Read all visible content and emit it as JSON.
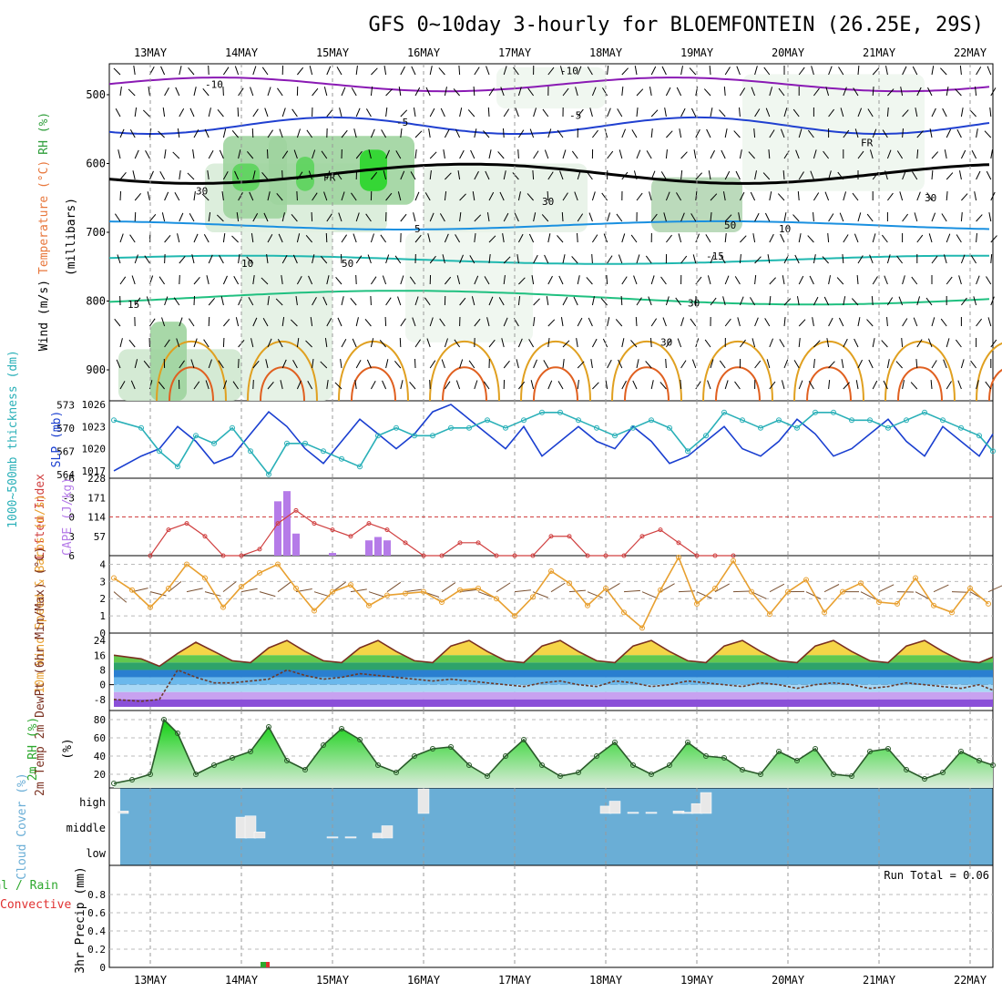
{
  "title": "GFS 0~10day 3-hourly for BLOEMFONTEIN (26.25E, 29S)",
  "dates": [
    "13MAY",
    "14MAY",
    "15MAY",
    "16MAY",
    "17MAY",
    "18MAY",
    "19MAY",
    "20MAY",
    "21MAY",
    "22MAY"
  ],
  "colors": {
    "wind_label": "#000000",
    "temp_label": "#e8773c",
    "rh_label": "#2e9e3a",
    "slp": "#1a3fd0",
    "thickness": "#2ab0b8",
    "lifted_index": "#d04040",
    "cape": "#b57be8",
    "wind10m": "#e8a030",
    "barb10m": "#7a5030",
    "temp2m": "#7a3020",
    "dewpt2m": "#6b3a2a",
    "rh2m": "#2ea82e",
    "cloud_bg": "#6aaed6",
    "cloud_bar": "#e8e8e8",
    "precip_total": "#2ea82e",
    "precip_conv": "#e03030"
  },
  "upper_panel": {
    "ylabel_parts": [
      "Wind (m/s)",
      "Temperature (°C)",
      "RH (%)",
      "(millibars)"
    ],
    "pressure_ticks": [
      "500",
      "600",
      "700",
      "800",
      "900"
    ],
    "contour_labels": [
      "-10",
      "-10",
      "-5",
      "FR",
      "FR",
      "-5",
      "5",
      "10",
      "10",
      "-15",
      "15",
      "30",
      "30",
      "30",
      "30",
      "30",
      "50",
      "50"
    ]
  },
  "slp_panel": {
    "ylabel_left": "1000~500mb thickness (dm)",
    "ylabel_right": "SLP (mb)",
    "left_ticks": [
      "573",
      "570",
      "567",
      "564"
    ],
    "right_ticks": [
      "1026",
      "1023",
      "1020",
      "1017"
    ]
  },
  "li_panel": {
    "ylabel_left": "Lifted Index",
    "ylabel_right": "CAPE (J/kg)",
    "left_ticks": [
      "-6",
      "-3",
      "0",
      "3",
      "6"
    ],
    "right_ticks": [
      "228",
      "171",
      "114",
      "57"
    ]
  },
  "wind10_panel": {
    "ylabel": "10m Wind Speed & Barbs (m/s)",
    "ticks": [
      "4",
      "3",
      "2",
      "1",
      "0"
    ]
  },
  "temp_panel": {
    "ylabel": "2m Temp 2m DewPt (6hr Min/Max) (°C)",
    "ticks": [
      "24",
      "16",
      "8",
      "0",
      "-8"
    ]
  },
  "rh_panel": {
    "ylabel": "2m RH (%)",
    "ticks": [
      "80",
      "60",
      "40",
      "20"
    ]
  },
  "cloud_panel": {
    "ylabel": "Cloud Cover (%)",
    "levels": [
      "high",
      "middle",
      "low"
    ]
  },
  "precip_panel": {
    "ylabel_left": "Total / Rain",
    "ylabel_conv": "Convective",
    "ylabel_axis": "3hr Precip (mm)",
    "ticks": [
      "0.8",
      "0.6",
      "0.4",
      "0.2",
      "0"
    ],
    "run_total": "Run Total = 0.06"
  },
  "chart_data": {
    "type": "line",
    "title": "GFS 0~10day 3-hourly for BLOEMFONTEIN (26.25E, 29S)",
    "x_categories": [
      "13MAY",
      "14MAY",
      "15MAY",
      "16MAY",
      "17MAY",
      "18MAY",
      "19MAY",
      "20MAY",
      "21MAY",
      "22MAY"
    ],
    "x_range_days": [
      12.55,
      22.25
    ],
    "series": [
      {
        "name": "SLP (mb)",
        "ylim": [
          1016,
          1026
        ],
        "x": [
          12.6,
          12.9,
          13.1,
          13.3,
          13.5,
          13.7,
          13.9,
          14.1,
          14.3,
          14.5,
          14.7,
          14.9,
          15.1,
          15.3,
          15.5,
          15.7,
          15.9,
          16.1,
          16.3,
          16.5,
          16.7,
          16.9,
          17.1,
          17.3,
          17.5,
          17.7,
          17.9,
          18.1,
          18.3,
          18.5,
          18.7,
          18.9,
          19.1,
          19.3,
          19.5,
          19.7,
          19.9,
          20.1,
          20.3,
          20.5,
          20.7,
          20.9,
          21.1,
          21.3,
          21.5,
          21.7,
          21.9,
          22.1,
          22.25
        ],
        "values": [
          1017,
          1019,
          1020,
          1023,
          1021,
          1018,
          1019,
          1022,
          1025,
          1023,
          1020,
          1018,
          1021,
          1024,
          1022,
          1020,
          1022,
          1025,
          1026,
          1024,
          1022,
          1020,
          1023,
          1019,
          1021,
          1023,
          1021,
          1020,
          1023,
          1021,
          1018,
          1019,
          1021,
          1023,
          1020,
          1019,
          1021,
          1024,
          1022,
          1019,
          1020,
          1022,
          1024,
          1021,
          1019,
          1023,
          1021,
          1019,
          1022
        ]
      },
      {
        "name": "1000~500mb thickness (dm)",
        "ylim": [
          564,
          573
        ],
        "x": [
          12.6,
          12.9,
          13.1,
          13.3,
          13.5,
          13.7,
          13.9,
          14.1,
          14.3,
          14.5,
          14.7,
          14.9,
          15.1,
          15.3,
          15.5,
          15.7,
          15.9,
          16.1,
          16.3,
          16.5,
          16.7,
          16.9,
          17.1,
          17.3,
          17.5,
          17.7,
          17.9,
          18.1,
          18.3,
          18.5,
          18.7,
          18.9,
          19.1,
          19.3,
          19.5,
          19.7,
          19.9,
          20.1,
          20.3,
          20.5,
          20.7,
          20.9,
          21.1,
          21.3,
          21.5,
          21.7,
          21.9,
          22.1,
          22.25
        ],
        "values": [
          571,
          570,
          567,
          565,
          569,
          568,
          570,
          567,
          564,
          568,
          568,
          567,
          566,
          565,
          569,
          570,
          569,
          569,
          570,
          570,
          571,
          570,
          571,
          572,
          572,
          571,
          570,
          569,
          570,
          571,
          570,
          567,
          569,
          572,
          571,
          570,
          571,
          570,
          572,
          572,
          571,
          571,
          570,
          571,
          572,
          571,
          570,
          569,
          567
        ]
      },
      {
        "name": "Lifted Index",
        "ylim": [
          -6,
          6
        ],
        "x": [
          13.0,
          13.2,
          13.4,
          13.6,
          13.8,
          14.0,
          14.2,
          14.4,
          14.6,
          14.8,
          15.0,
          15.2,
          15.4,
          15.6,
          15.8,
          16.0,
          16.2,
          16.4,
          16.6,
          16.8,
          17.0,
          17.2,
          17.4,
          17.6,
          17.8,
          18.0,
          18.2,
          18.4,
          18.6,
          18.8,
          19.0,
          19.2,
          19.4
        ],
        "values": [
          6,
          2,
          1,
          3,
          6,
          6,
          5,
          1,
          -1,
          1,
          2,
          3,
          1,
          2,
          4,
          6,
          6,
          4,
          4,
          6,
          6,
          6,
          3,
          3,
          6,
          6,
          6,
          3,
          2,
          4,
          6,
          6,
          6
        ]
      },
      {
        "name": "CAPE (J/kg)",
        "type": "bar",
        "ylim": [
          0,
          228
        ],
        "x": [
          14.4,
          14.5,
          14.6,
          15.0,
          15.4,
          15.5,
          15.6
        ],
        "values": [
          160,
          190,
          65,
          8,
          45,
          55,
          45
        ]
      },
      {
        "name": "10m Wind Speed (m/s)",
        "ylim": [
          0,
          4.5
        ],
        "x": [
          12.6,
          12.8,
          13.0,
          13.2,
          13.4,
          13.6,
          13.8,
          14.0,
          14.2,
          14.4,
          14.6,
          14.8,
          15.0,
          15.2,
          15.4,
          15.6,
          15.8,
          16.0,
          16.2,
          16.4,
          16.6,
          16.8,
          17.0,
          17.2,
          17.4,
          17.6,
          17.8,
          18.0,
          18.2,
          18.4,
          18.6,
          18.8,
          19.0,
          19.2,
          19.4,
          19.6,
          19.8,
          20.0,
          20.2,
          20.4,
          20.6,
          20.8,
          21.0,
          21.2,
          21.4,
          21.6,
          21.8,
          22.0,
          22.2
        ],
        "values": [
          3.2,
          2.5,
          1.5,
          2.6,
          4.0,
          3.2,
          1.5,
          2.7,
          3.5,
          4.0,
          2.6,
          1.3,
          2.4,
          2.8,
          1.6,
          2.2,
          2.3,
          2.4,
          1.8,
          2.5,
          2.6,
          2.0,
          1.0,
          2.1,
          3.6,
          2.9,
          1.6,
          2.6,
          1.2,
          0.3,
          2.5,
          4.4,
          1.7,
          2.6,
          4.2,
          2.4,
          1.1,
          2.4,
          3.1,
          1.2,
          2.4,
          2.9,
          1.8,
          1.7,
          3.2,
          1.6,
          1.2,
          2.6,
          1.7
        ]
      },
      {
        "name": "2m Temp (°C)",
        "ylim": [
          -14,
          28
        ],
        "x": [
          12.6,
          12.9,
          13.1,
          13.3,
          13.5,
          13.7,
          13.9,
          14.1,
          14.3,
          14.5,
          14.7,
          14.9,
          15.1,
          15.3,
          15.5,
          15.7,
          15.9,
          16.1,
          16.3,
          16.5,
          16.7,
          16.9,
          17.1,
          17.3,
          17.5,
          17.7,
          17.9,
          18.1,
          18.3,
          18.5,
          18.7,
          18.9,
          19.1,
          19.3,
          19.5,
          19.7,
          19.9,
          20.1,
          20.3,
          20.5,
          20.7,
          20.9,
          21.1,
          21.3,
          21.5,
          21.7,
          21.9,
          22.1,
          22.25
        ],
        "values": [
          16,
          14,
          10,
          17,
          23,
          18,
          13,
          12,
          20,
          24,
          18,
          13,
          12,
          20,
          24,
          18,
          13,
          12,
          21,
          24,
          18,
          13,
          12,
          21,
          24,
          18,
          13,
          12,
          21,
          24,
          18,
          13,
          12,
          21,
          24,
          18,
          13,
          12,
          21,
          24,
          18,
          13,
          12,
          21,
          24,
          18,
          13,
          12,
          15
        ]
      },
      {
        "name": "2m DewPt (°C)",
        "ylim": [
          -14,
          28
        ],
        "x": [
          12.6,
          12.9,
          13.1,
          13.3,
          13.5,
          13.7,
          13.9,
          14.1,
          14.3,
          14.5,
          14.7,
          14.9,
          15.1,
          15.3,
          15.5,
          15.7,
          15.9,
          16.1,
          16.3,
          16.5,
          16.7,
          16.9,
          17.1,
          17.3,
          17.5,
          17.7,
          17.9,
          18.1,
          18.3,
          18.5,
          18.7,
          18.9,
          19.1,
          19.3,
          19.5,
          19.7,
          19.9,
          20.1,
          20.3,
          20.5,
          20.7,
          20.9,
          21.1,
          21.3,
          21.5,
          21.7,
          21.9,
          22.1,
          22.25
        ],
        "values": [
          -8,
          -9,
          -8,
          8,
          4,
          1,
          1,
          2,
          3,
          8,
          5,
          3,
          4,
          6,
          5,
          4,
          3,
          2,
          3,
          2,
          1,
          0,
          -1,
          1,
          2,
          0,
          -1,
          2,
          1,
          -1,
          0,
          2,
          1,
          0,
          -1,
          1,
          0,
          -2,
          0,
          1,
          0,
          -2,
          -1,
          1,
          0,
          -1,
          -2,
          0,
          -3
        ]
      },
      {
        "name": "2m RH (%)",
        "ylim": [
          5,
          90
        ],
        "x": [
          12.6,
          12.8,
          13.0,
          13.15,
          13.3,
          13.5,
          13.7,
          13.9,
          14.1,
          14.3,
          14.5,
          14.7,
          14.9,
          15.1,
          15.3,
          15.5,
          15.7,
          15.9,
          16.1,
          16.3,
          16.5,
          16.7,
          16.9,
          17.1,
          17.3,
          17.5,
          17.7,
          17.9,
          18.1,
          18.3,
          18.5,
          18.7,
          18.9,
          19.1,
          19.3,
          19.5,
          19.7,
          19.9,
          20.1,
          20.3,
          20.5,
          20.7,
          20.9,
          21.1,
          21.3,
          21.5,
          21.7,
          21.9,
          22.1,
          22.25
        ],
        "values": [
          10,
          14,
          20,
          80,
          65,
          20,
          30,
          38,
          45,
          72,
          35,
          25,
          52,
          70,
          58,
          30,
          22,
          40,
          48,
          50,
          30,
          18,
          40,
          58,
          30,
          18,
          22,
          40,
          55,
          30,
          20,
          30,
          55,
          40,
          38,
          25,
          20,
          45,
          35,
          48,
          20,
          18,
          45,
          48,
          25,
          15,
          22,
          45,
          35,
          30
        ]
      },
      {
        "name": "Cloud Cover high (%)",
        "x": [
          12.7,
          16.0,
          18.0,
          18.1,
          18.3,
          18.5,
          18.8,
          18.9,
          19.0,
          19.1
        ],
        "values": [
          10,
          100,
          30,
          50,
          5,
          5,
          10,
          5,
          40,
          85
        ]
      },
      {
        "name": "Cloud Cover middle (%)",
        "x": [
          14.0,
          14.1,
          14.2,
          15.0,
          15.2,
          15.5,
          15.6
        ],
        "values": [
          85,
          90,
          25,
          5,
          5,
          20,
          50
        ]
      },
      {
        "name": "3hr Precip Total/Rain (mm)",
        "type": "bar",
        "ylim": [
          0,
          1.0
        ],
        "x": [
          14.25
        ],
        "values": [
          0.06
        ]
      },
      {
        "name": "3hr Precip Convective (mm)",
        "type": "bar",
        "ylim": [
          0,
          1.0
        ],
        "x": [
          14.28
        ],
        "values": [
          0.06
        ]
      }
    ]
  }
}
